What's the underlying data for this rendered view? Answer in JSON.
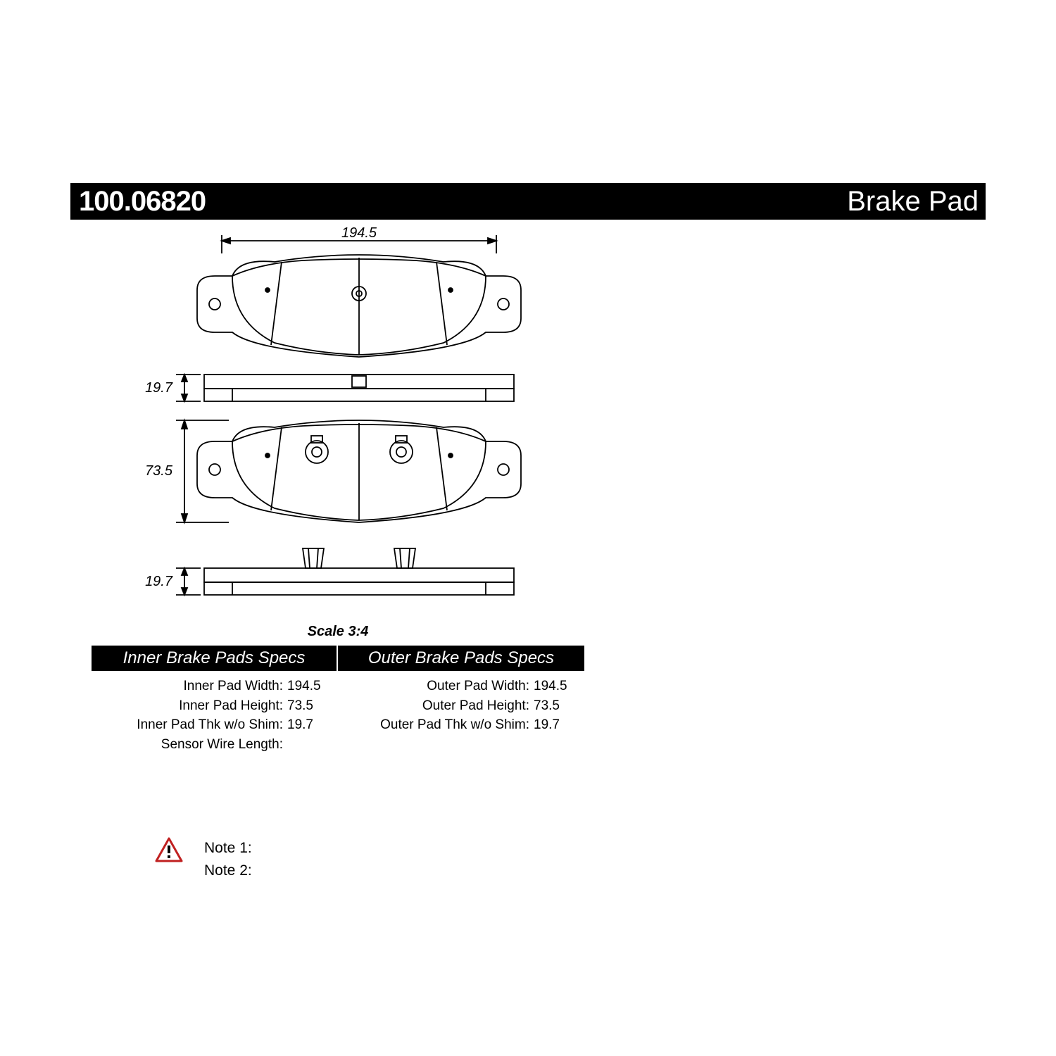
{
  "header": {
    "part_number": "100.06820",
    "product_type": "Brake Pad"
  },
  "drawing": {
    "width_dim": "194.5",
    "thickness_top": "19.7",
    "height_dim": "73.5",
    "thickness_bottom": "19.7",
    "scale": "Scale 3:4",
    "stroke_color": "#000000",
    "stroke_width": 1.8,
    "fill": "#ffffff",
    "dim_font_size": 20
  },
  "specs": {
    "inner": {
      "title": "Inner Brake Pads Specs",
      "rows": [
        {
          "label": "Inner Pad Width:",
          "value": "194.5"
        },
        {
          "label": "Inner Pad Height:",
          "value": "73.5"
        },
        {
          "label": "Inner Pad Thk w/o Shim:",
          "value": "19.7"
        },
        {
          "label": "Sensor Wire Length:",
          "value": ""
        }
      ]
    },
    "outer": {
      "title": "Outer Brake Pads Specs",
      "rows": [
        {
          "label": "Outer Pad Width:",
          "value": "194.5"
        },
        {
          "label": "Outer Pad Height:",
          "value": "73.5"
        },
        {
          "label": "Outer Pad Thk w/o Shim:",
          "value": "19.7"
        }
      ]
    }
  },
  "notes": {
    "note1": "Note 1:",
    "note2": "Note 2:",
    "icon_border": "#c02020",
    "icon_fill": "#ffffff",
    "icon_mark": "#000000"
  },
  "colors": {
    "bg": "#ffffff",
    "bar_bg": "#000000",
    "bar_fg": "#ffffff",
    "text": "#000000"
  }
}
